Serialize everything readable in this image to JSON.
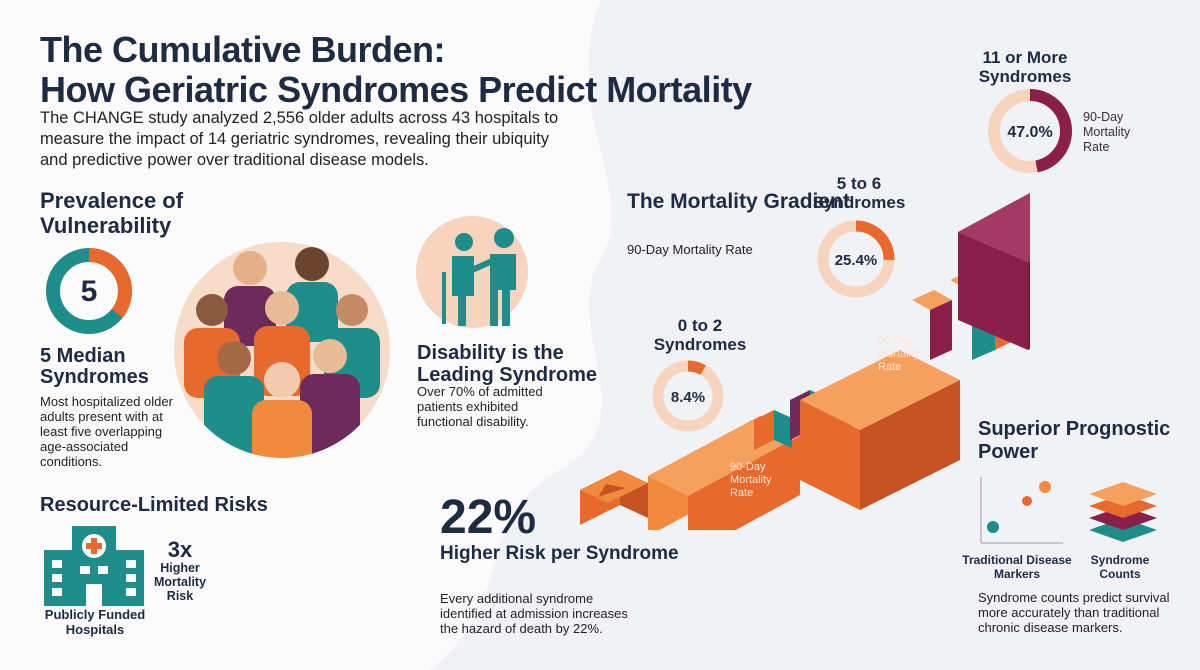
{
  "header": {
    "title_line1": "The Cumulative Burden:",
    "title_line2": "How Geriatric Syndromes Predict Mortality",
    "intro": "The CHANGE study analyzed 2,556 older adults across 43 hospitals to measure the impact of 14 geriatric syndromes, revealing their ubiquity and predictive power over traditional disease models."
  },
  "prevalence": {
    "heading": "Prevalence of Vulnerability",
    "donut_value": "5",
    "donut_fraction": 0.357,
    "median_title": "5 Median Syndromes",
    "median_text": "Most hospitalized older adults present with at least five overlapping age-associated conditions."
  },
  "disability": {
    "title": "Disability is the Leading Syndrome",
    "text": "Over 70% of admitted patients exhibited functional disability."
  },
  "resources": {
    "heading": "Resource-Limited Risks",
    "hospital_caption": "Publicly Funded Hospitals",
    "multiplier": "3x",
    "multiplier_text": "Higher Mortality Risk"
  },
  "risk": {
    "value": "22%",
    "title": "Higher Risk per Syndrome",
    "text": "Every additional syndrome identified at admission increases the hazard of death by 22%."
  },
  "gradient": {
    "title": "The Mortality Gradient",
    "subtitle": "90-Day Mortality Rate",
    "step_label": "90-Day Mortality Rate",
    "tiers": [
      {
        "label": "0 to 2 Syndromes",
        "value": "8.4%",
        "rate": 0.084
      },
      {
        "label": "5 to 6 Syndromes",
        "value": "25.4%",
        "rate": 0.254
      },
      {
        "label": "11 or More Syndromes",
        "value": "47.0%",
        "rate": 0.47,
        "side_label": "90-Day Mortality Rate"
      }
    ]
  },
  "prognostic": {
    "title": "Superior Prognostic Power",
    "trad_caption": "Traditional Disease Markers",
    "synd_caption": "Syndrome Counts",
    "text": "Syndrome counts predict survival more accurately than traditional chronic disease markers."
  },
  "colors": {
    "navy": "#1e2b42",
    "teal": "#1f8d8a",
    "orange": "#e8692e",
    "maroon": "#8a1f4a",
    "peach": "#f7d4bd"
  }
}
